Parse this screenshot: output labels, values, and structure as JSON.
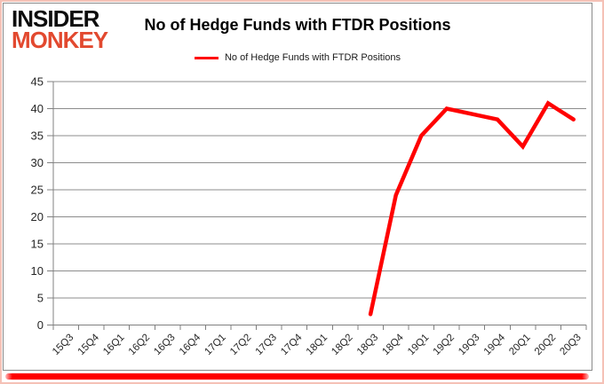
{
  "branding": {
    "logo_line1": "INSIDER",
    "logo_line2": "MONKEY",
    "logo_color": "#e2492f"
  },
  "header": {
    "title": "No of Hedge Funds with FTDR Positions"
  },
  "legend": {
    "label": "No of Hedge Funds with FTDR Positions",
    "line_color": "#ff0000"
  },
  "colors": {
    "series_red": "#ff0000",
    "gridline": "#8c8c8c",
    "axis": "#808080",
    "tick_label": "#262626",
    "outer_border_pink": "#f5c1b6",
    "bottom_bar_red": "#fe0000"
  },
  "chart_data": {
    "type": "line",
    "title": "No of Hedge Funds with FTDR Positions",
    "categories": [
      "15Q3",
      "15Q4",
      "16Q1",
      "16Q2",
      "16Q3",
      "16Q4",
      "17Q1",
      "17Q2",
      "17Q3",
      "17Q4",
      "18Q1",
      "18Q2",
      "18Q3",
      "18Q4",
      "19Q1",
      "19Q2",
      "19Q3",
      "19Q4",
      "20Q1",
      "20Q2",
      "20Q3"
    ],
    "series": [
      {
        "name": "No of Hedge Funds with FTDR Positions",
        "color": "#ff0000",
        "values": [
          null,
          null,
          null,
          null,
          null,
          null,
          null,
          null,
          null,
          null,
          null,
          null,
          2,
          24,
          35,
          40,
          39,
          38,
          33,
          41,
          38
        ]
      }
    ],
    "xlabel": "",
    "ylabel": "",
    "ylim": [
      0,
      45
    ],
    "yticks": [
      0,
      5,
      10,
      15,
      20,
      25,
      30,
      35,
      40,
      45
    ],
    "grid": "horizontal",
    "legend_position": "top-center",
    "x_tick_label_rotation_deg": 45
  }
}
